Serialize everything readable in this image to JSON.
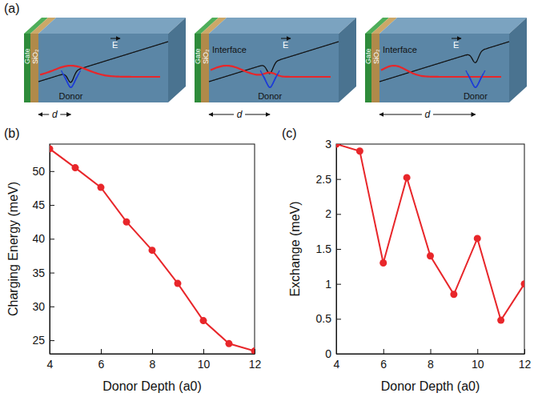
{
  "diagram": {
    "panel_label": "(a)",
    "devices": [
      {
        "gate": "Gate",
        "oxide": "SiO₂",
        "field": "E",
        "donor": "Donor",
        "distance": "d"
      },
      {
        "gate": "Gate",
        "oxide": "SiO₂",
        "field": "E",
        "interface": "Interface",
        "donor": "Donor",
        "distance": "d"
      },
      {
        "gate": "Gate",
        "oxide": "SiO₂",
        "field": "E",
        "interface": "Interface",
        "donor": "Donor",
        "distance": "d"
      }
    ]
  },
  "chart_data": [
    {
      "type": "line",
      "panel_label": "(b)",
      "xlabel": "Donor Depth (a0)",
      "ylabel": "Charging Energy (meV)",
      "x": [
        4,
        5,
        6,
        7,
        8,
        9,
        10,
        11,
        12
      ],
      "values": [
        53.3,
        50.5,
        47.6,
        42.5,
        38.3,
        33.4,
        27.9,
        24.5,
        23.4
      ],
      "color": "#e8262a",
      "marker": "circle",
      "xlim": [
        4,
        12
      ],
      "xticks": [
        4,
        6,
        8,
        10,
        12
      ],
      "ylim": [
        23,
        54
      ],
      "yticks": [
        25,
        30,
        35,
        40,
        45,
        50
      ],
      "grid": false
    },
    {
      "type": "line",
      "panel_label": "(c)",
      "xlabel": "Donor Depth (a0)",
      "ylabel": "Exchange (meV)",
      "x": [
        4,
        5,
        6,
        7,
        8,
        9,
        10,
        11,
        12
      ],
      "values": [
        3.0,
        2.9,
        1.3,
        2.52,
        1.4,
        0.85,
        1.65,
        0.48,
        1.0
      ],
      "color": "#e8262a",
      "marker": "circle",
      "xlim": [
        4,
        12
      ],
      "xticks": [
        4,
        6,
        8,
        10,
        12
      ],
      "ylim": [
        0,
        3
      ],
      "yticks": [
        0,
        0.5,
        1,
        1.5,
        2,
        2.5,
        3
      ],
      "grid": false
    }
  ]
}
